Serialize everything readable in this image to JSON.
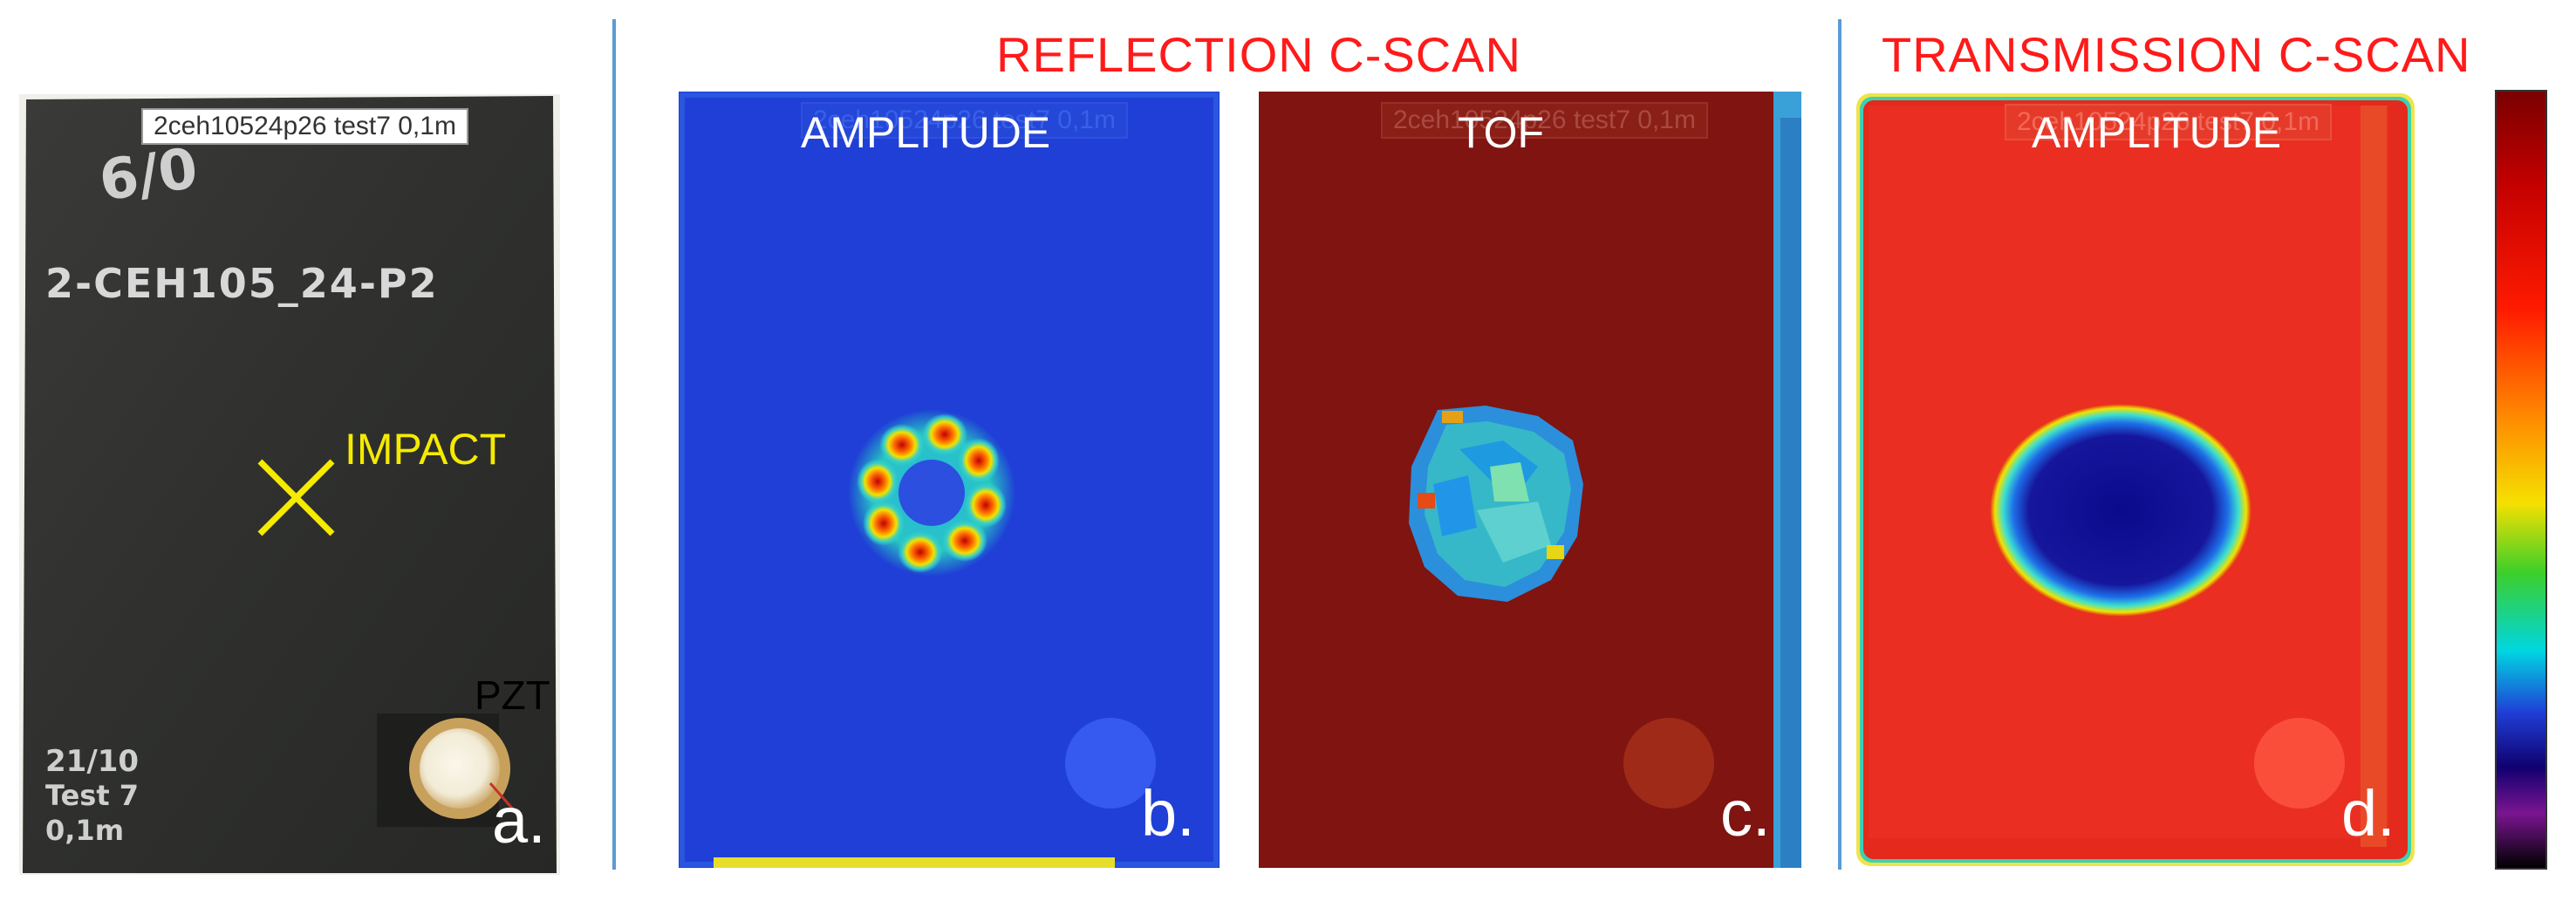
{
  "section_titles": {
    "reflection": "REFLECTION C-SCAN",
    "transmission": "TRANSMISSION C-SCAN"
  },
  "photo": {
    "specimen_tag": "2ceh10524p26 test7 0,1m",
    "marking_top": "6/0",
    "marking_id": "2-CEH105_24-P2",
    "marking_bottom": [
      "21/10",
      "Test 7",
      "0,1m"
    ],
    "impact_label": "IMPACT",
    "pzt_label": "PZT",
    "panel_letter": "a.",
    "impact_marker_color": "#f5ea00"
  },
  "scans": [
    {
      "id": "b",
      "section": "reflection",
      "label": "AMPLITUDE",
      "panel_letter": "b.",
      "tag": "2ceh10524p26 test7 0,1m",
      "background": "#1f3fd6",
      "defect_map": "ring of high-amplitude spots"
    },
    {
      "id": "c",
      "section": "reflection",
      "label": "TOF",
      "panel_letter": "c.",
      "tag": "2ceh10524p26 test7 0,1m",
      "background": "#7f1411",
      "defect_map": "multicolour delamination area"
    },
    {
      "id": "d",
      "section": "transmission",
      "label": "AMPLITUDE",
      "panel_letter": "d.",
      "tag": "2ceh10524p26 test7 0,1m",
      "background": "#e32a1c",
      "defect_map": "low-amplitude dark blue zone"
    }
  ],
  "colorbar": {
    "colors": [
      "#7a0000",
      "#c40000",
      "#ff1a00",
      "#ff8a00",
      "#f5e000",
      "#3ccf2a",
      "#00d6e0",
      "#1f3fd6",
      "#100070",
      "#7a1590",
      "#000000"
    ],
    "orientation": "vertical"
  }
}
